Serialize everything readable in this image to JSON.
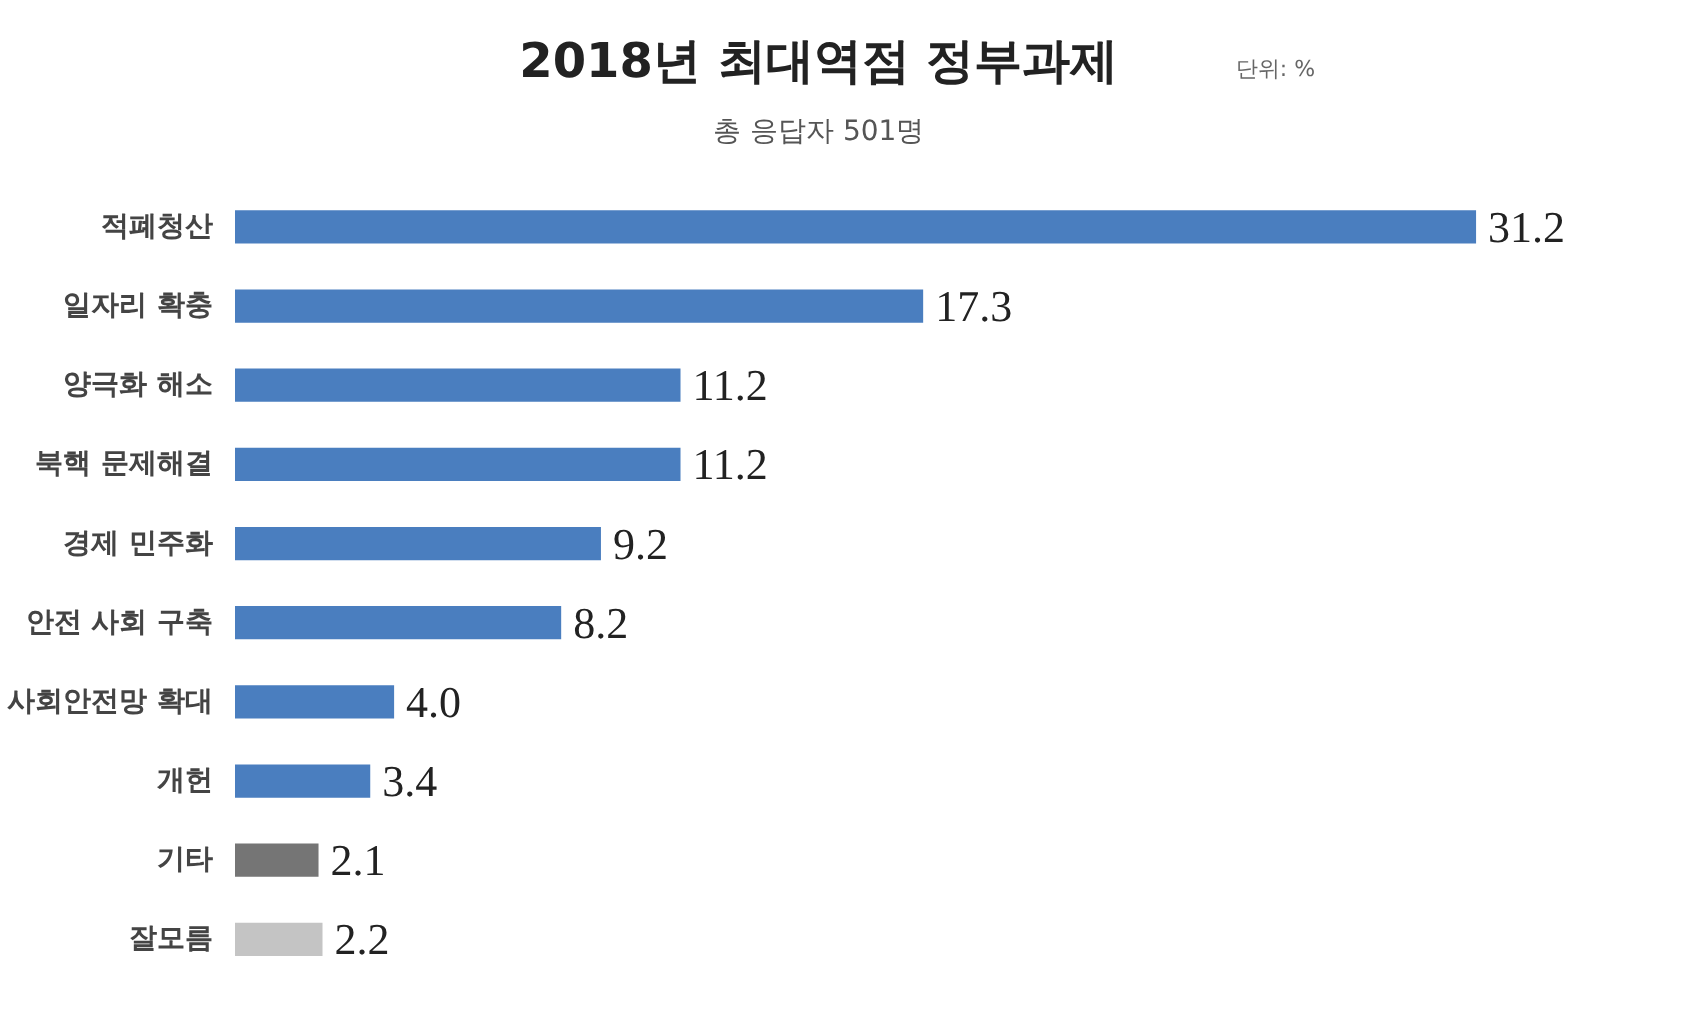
{
  "chart_data": {
    "type": "bar",
    "orientation": "horizontal",
    "title": "2018년 최대역점 정부과제",
    "subtitle": "총 응답자 501명",
    "annotations": [
      "단위: %"
    ],
    "categories": [
      "적폐청산",
      "일자리 확충",
      "양극화 해소",
      "북핵 문제해결",
      "경제 민주화",
      "안전 사회 구축",
      "사회안전망 확대",
      "개헌",
      "기타",
      "잘모름"
    ],
    "values": [
      31.2,
      17.3,
      11.2,
      11.2,
      9.2,
      8.2,
      4.0,
      3.4,
      2.1,
      2.2
    ],
    "value_labels": [
      "31.2",
      "17.3",
      "11.2",
      "11.2",
      "9.2",
      "8.2",
      "4.0",
      "3.4",
      "2.1",
      "2.2"
    ],
    "colors": [
      "#4a7ebf",
      "#4a7ebf",
      "#4a7ebf",
      "#4a7ebf",
      "#4a7ebf",
      "#4a7ebf",
      "#4a7ebf",
      "#4a7ebf",
      "#757575",
      "#c4c4c4"
    ],
    "grid": false
  }
}
